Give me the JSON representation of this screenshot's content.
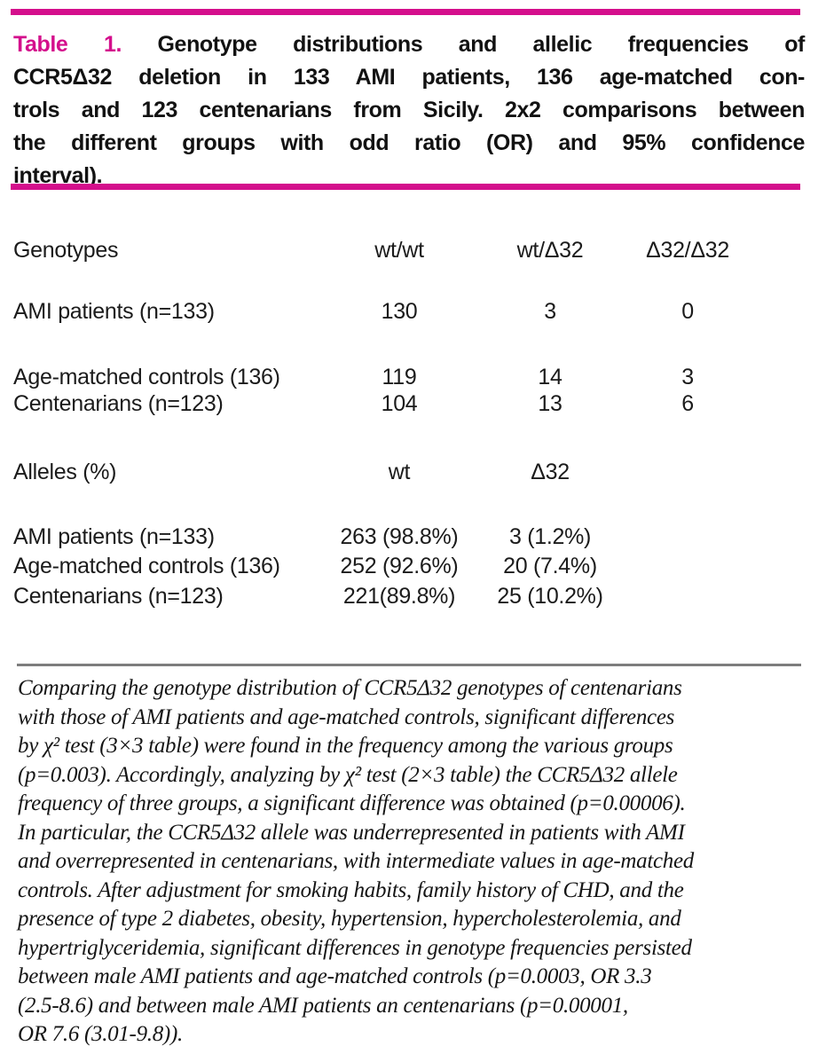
{
  "accent_color": "#d40f8c",
  "caption": {
    "label": "Table 1.",
    "lines": [
      "Genotype distributions and allelic frequencies of",
      "CCR5Δ32 deletion in 133 AMI patients, 136 age-matched con-",
      "trols and 123 centenarians from Sicily. 2x2 comparisons between",
      "the different groups with odd ratio (OR) and 95% confidence",
      "interval)."
    ]
  },
  "genotype_table": {
    "row_header": "Genotypes",
    "col_headers": [
      "wt/wt",
      "wt/Δ32",
      "Δ32/Δ32"
    ],
    "rows": [
      {
        "label": "AMI patients (n=133)",
        "wt_wt": "130",
        "wt_d32": "3",
        "d32_d32": "0"
      },
      {
        "label": "Age-matched controls (136)",
        "wt_wt": "119",
        "wt_d32": "14",
        "d32_d32": "3"
      },
      {
        "label": "Centenarians (n=123)",
        "wt_wt": "104",
        "wt_d32": "13",
        "d32_d32": "6"
      }
    ]
  },
  "allele_table": {
    "row_header": "Alleles (%)",
    "col_headers": [
      "wt",
      "Δ32"
    ],
    "rows": [
      {
        "label": "AMI patients (n=133)",
        "wt": "263 (98.8%)",
        "d32": "3 (1.2%)"
      },
      {
        "label": "Age-matched controls (136)",
        "wt": "252 (92.6%)",
        "d32": "20 (7.4%)"
      },
      {
        "label": "Centenarians (n=123)",
        "wt": "221(89.8%)",
        "d32": "25 (10.2%)"
      }
    ]
  },
  "footnote": {
    "lines": [
      "Comparing the genotype distribution of CCR5Δ32 genotypes of centenarians",
      "with those of  AMI patients and age-matched controls, significant differences",
      "by χ² test (3×3 table) were found in the frequency among the various groups",
      "(p=0.003). Accordingly, analyzing by χ² test (2×3 table) the CCR5Δ32 allele",
      "frequency of three groups, a significant difference was obtained (p=0.00006).",
      "In particular, the CCR5Δ32 allele was underrepresented in patients with AMI",
      "and overrepresented in centenarians, with intermediate values in age-matched",
      "controls.  After adjustment for smoking habits, family history of CHD, and the",
      "presence of type 2 diabetes, obesity, hypertension, hypercholesterolemia, and",
      "hypertriglyceridemia, significant differences in genotype frequencies persisted",
      "between male AMI patients and age-matched controls (p=0.0003, OR 3.3",
      "(2.5-8.6) and between male AMI patients an  centenarians (p=0.00001,",
      "OR 7.6 (3.01-9.8))."
    ]
  }
}
